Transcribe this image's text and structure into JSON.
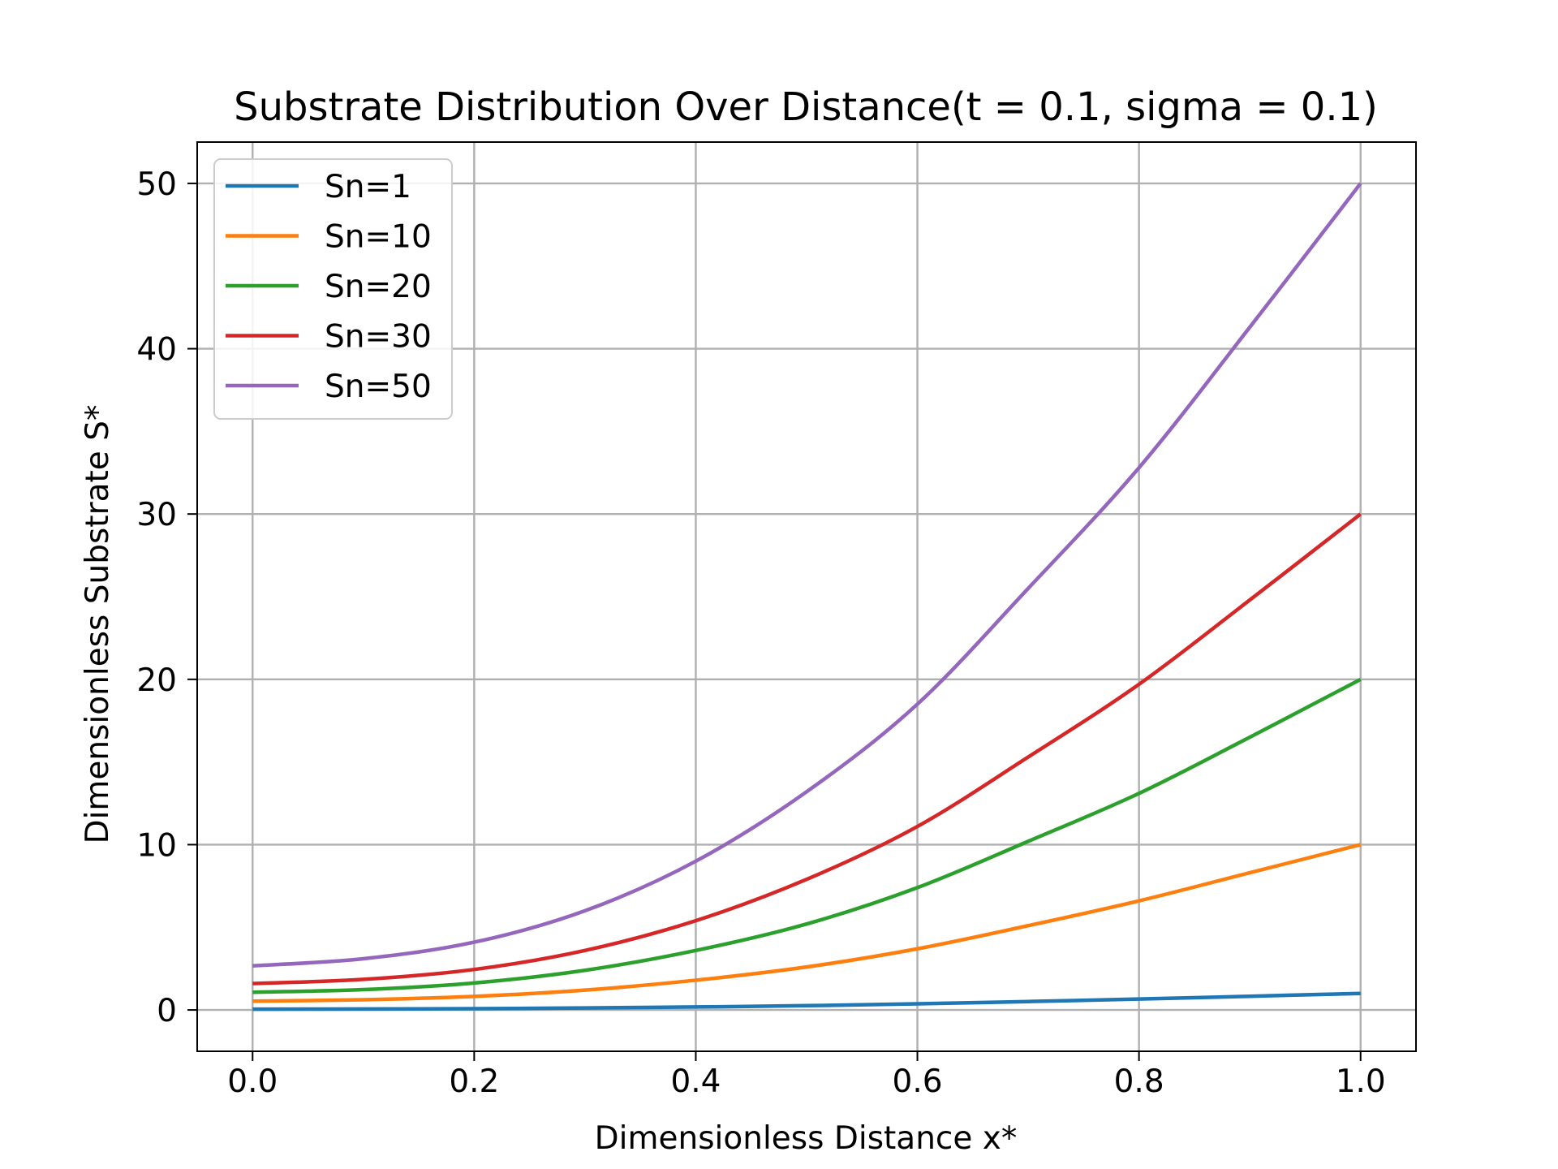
{
  "chart_data": {
    "type": "line",
    "title": "Substrate Distribution Over Distance(t = 0.1, sigma = 0.1)",
    "xlabel": "Dimensionless Distance x*",
    "ylabel": "Dimensionless Substrate S*",
    "xlim": [
      -0.05,
      1.05
    ],
    "ylim": [
      -2.5,
      52.5
    ],
    "xticks": [
      "0.0",
      "0.2",
      "0.4",
      "0.6",
      "0.8",
      "1.0"
    ],
    "yticks": [
      "0",
      "10",
      "20",
      "30",
      "40",
      "50"
    ],
    "grid": true,
    "legend_position": "upper-left",
    "x": [
      0.0,
      0.1,
      0.2,
      0.3,
      0.4,
      0.5,
      0.6,
      0.7,
      0.8,
      0.9,
      1.0
    ],
    "series": [
      {
        "name": "Sn=1",
        "color": "#1f77b4",
        "values": [
          0.05,
          0.06,
          0.08,
          0.12,
          0.18,
          0.26,
          0.37,
          0.51,
          0.66,
          0.83,
          1.0
        ]
      },
      {
        "name": "Sn=10",
        "color": "#ff7f0e",
        "values": [
          0.53,
          0.62,
          0.82,
          1.2,
          1.8,
          2.6,
          3.7,
          5.1,
          6.6,
          8.3,
          10.0
        ]
      },
      {
        "name": "Sn=20",
        "color": "#2ca02c",
        "values": [
          1.07,
          1.23,
          1.63,
          2.4,
          3.6,
          5.2,
          7.4,
          10.2,
          13.1,
          16.5,
          20.0
        ]
      },
      {
        "name": "Sn=30",
        "color": "#d62728",
        "values": [
          1.6,
          1.85,
          2.45,
          3.6,
          5.4,
          7.9,
          11.1,
          15.3,
          19.7,
          24.8,
          30.0
        ]
      },
      {
        "name": "Sn=50",
        "color": "#9467bd",
        "values": [
          2.67,
          3.1,
          4.1,
          6.0,
          9.0,
          13.2,
          18.5,
          25.5,
          32.8,
          41.3,
          50.0
        ]
      }
    ]
  }
}
